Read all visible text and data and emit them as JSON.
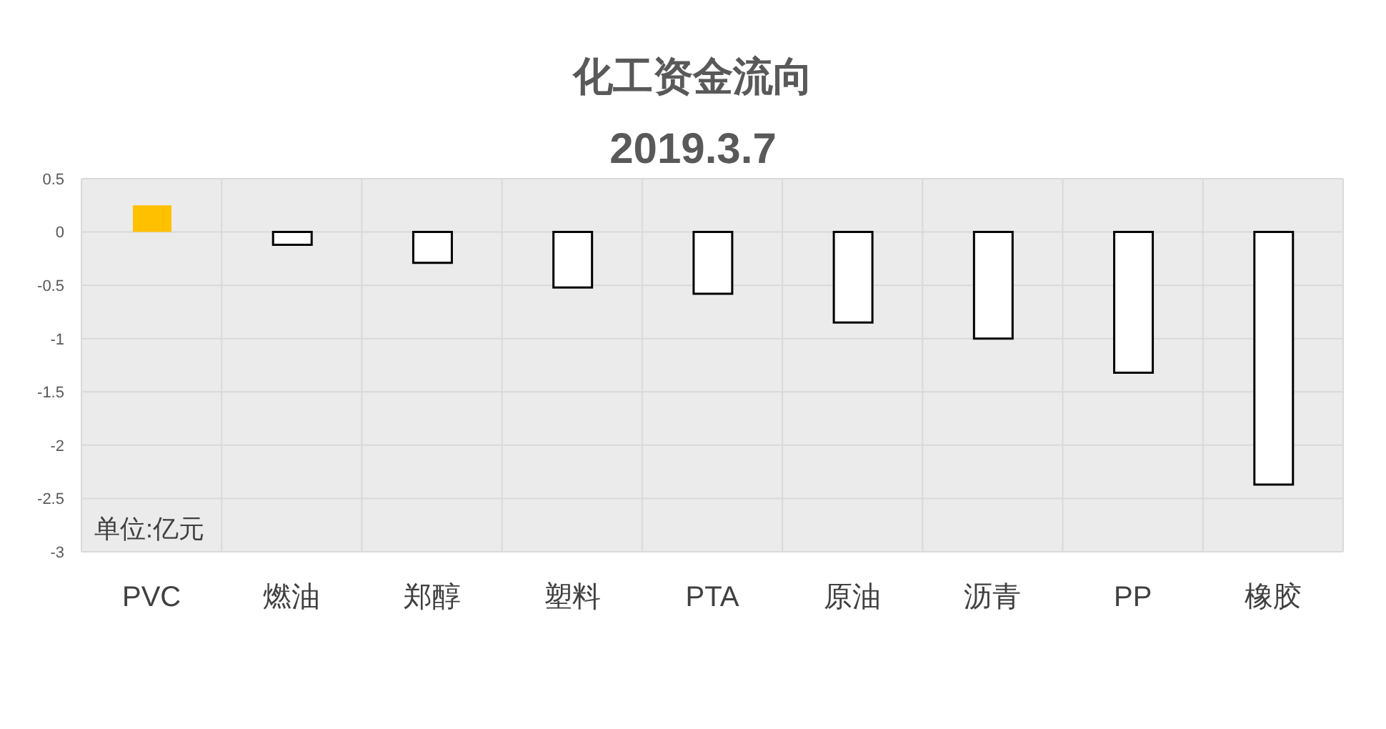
{
  "chart_data": {
    "type": "bar",
    "title": "化工资金流向",
    "subtitle": "2019.3.7",
    "categories": [
      "PVC",
      "燃油",
      "郑醇",
      "塑料",
      "PTA",
      "原油",
      "沥青",
      "PP",
      "橡胶"
    ],
    "values": [
      0.25,
      -0.12,
      -0.29,
      -0.52,
      -0.58,
      -0.85,
      -1.0,
      -1.32,
      -2.37
    ],
    "colors": [
      "#ffc000",
      "#ffffff",
      "#ffffff",
      "#ffffff",
      "#ffffff",
      "#ffffff",
      "#ffffff",
      "#ffffff",
      "#ffffff"
    ],
    "ylim": [
      -3,
      0.5
    ],
    "yticks": [
      -3,
      -2.5,
      -2,
      -1.5,
      -1,
      -0.5,
      0,
      0.5
    ],
    "grid": true,
    "annotations": [
      "单位:亿元"
    ]
  }
}
